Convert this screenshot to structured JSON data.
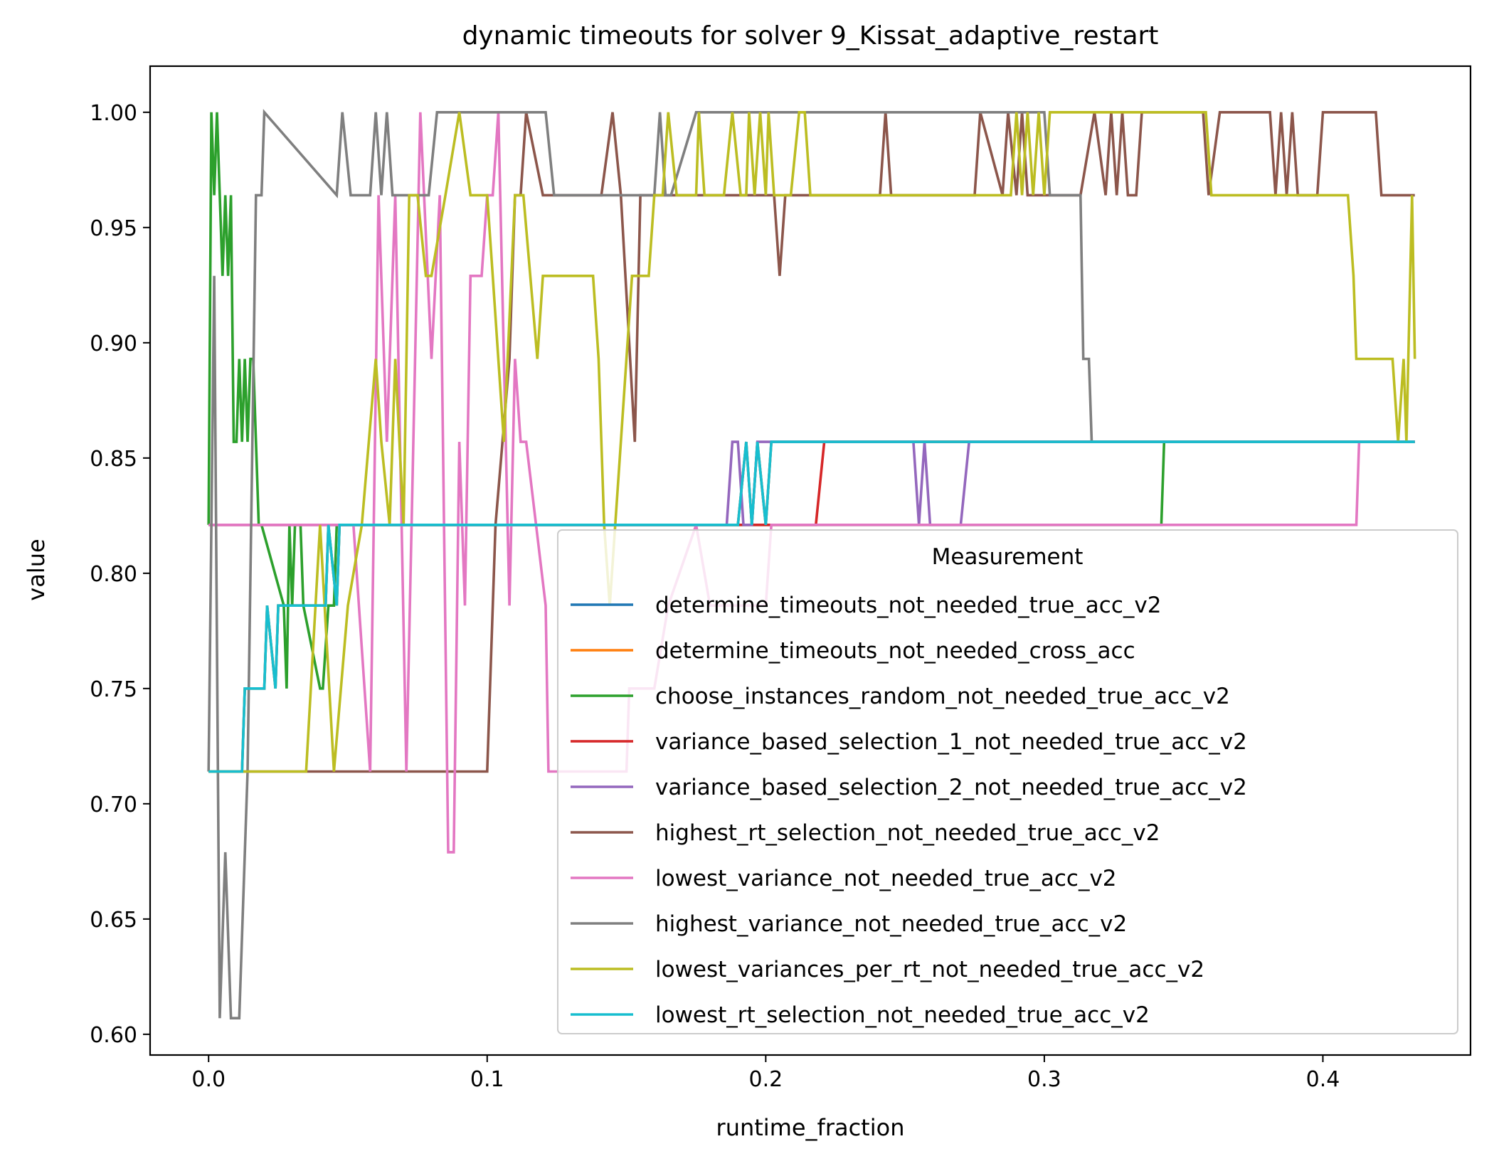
{
  "chart_data": {
    "type": "line",
    "title": "dynamic timeouts for solver 9_Kissat_adaptive_restart",
    "xlabel": "runtime_fraction",
    "ylabel": "value",
    "xlim": [
      -0.021,
      0.453
    ],
    "ylim": [
      0.591,
      1.02
    ],
    "xticks": [
      0.0,
      0.1,
      0.2,
      0.3,
      0.4
    ],
    "xtick_labels": [
      "0.0",
      "0.1",
      "0.2",
      "0.3",
      "0.4"
    ],
    "yticks": [
      0.6,
      0.65,
      0.7,
      0.75,
      0.8,
      0.85,
      0.9,
      0.95,
      1.0
    ],
    "ytick_labels": [
      "0.60",
      "0.65",
      "0.70",
      "0.75",
      "0.80",
      "0.85",
      "0.90",
      "0.95",
      "1.00"
    ],
    "grid": false,
    "legend": {
      "title": "Measurement",
      "placement": "lower-right"
    },
    "series": [
      {
        "name": "determine_timeouts_not_needed_true_acc_v2",
        "color": "#1f77b4",
        "x": [
          0.0,
          0.012,
          0.013,
          0.02,
          0.021,
          0.024,
          0.025,
          0.042,
          0.043,
          0.046,
          0.047,
          0.19,
          0.193,
          0.195,
          0.197,
          0.2,
          0.202,
          0.433
        ],
        "y": [
          0.714,
          0.714,
          0.75,
          0.75,
          0.786,
          0.75,
          0.786,
          0.786,
          0.821,
          0.786,
          0.821,
          0.821,
          0.857,
          0.821,
          0.857,
          0.821,
          0.857,
          0.857
        ]
      },
      {
        "name": "determine_timeouts_not_needed_cross_acc",
        "color": "#ff7f0e",
        "x": [
          0.0,
          0.012,
          0.013,
          0.02,
          0.021,
          0.024,
          0.025,
          0.042,
          0.043,
          0.046,
          0.047,
          0.19,
          0.193,
          0.195,
          0.197,
          0.2,
          0.202,
          0.433
        ],
        "y": [
          0.714,
          0.714,
          0.75,
          0.75,
          0.786,
          0.75,
          0.786,
          0.786,
          0.821,
          0.786,
          0.821,
          0.821,
          0.857,
          0.821,
          0.857,
          0.821,
          0.857,
          0.857
        ]
      },
      {
        "name": "choose_instances_random_not_needed_true_acc_v2",
        "color": "#2ca02c",
        "x": [
          0.0,
          0.001,
          0.002,
          0.003,
          0.004,
          0.005,
          0.006,
          0.007,
          0.008,
          0.009,
          0.01,
          0.011,
          0.012,
          0.013,
          0.014,
          0.015,
          0.016,
          0.018,
          0.019,
          0.027,
          0.028,
          0.029,
          0.03,
          0.031,
          0.033,
          0.034,
          0.04,
          0.041,
          0.043,
          0.045,
          0.046,
          0.047,
          0.048,
          0.342,
          0.343,
          0.433
        ],
        "y": [
          0.821,
          1.0,
          0.964,
          1.0,
          0.964,
          0.929,
          0.964,
          0.929,
          0.964,
          0.857,
          0.857,
          0.893,
          0.857,
          0.893,
          0.857,
          0.893,
          0.893,
          0.821,
          0.821,
          0.786,
          0.75,
          0.821,
          0.786,
          0.821,
          0.821,
          0.786,
          0.75,
          0.75,
          0.786,
          0.786,
          0.821,
          0.821,
          0.821,
          0.821,
          0.857,
          0.857
        ]
      },
      {
        "name": "variance_based_selection_1_not_needed_true_acc_v2",
        "color": "#d62728",
        "x": [
          0.0,
          0.218,
          0.221,
          0.433
        ],
        "y": [
          0.821,
          0.821,
          0.857,
          0.857
        ]
      },
      {
        "name": "variance_based_selection_2_not_needed_true_acc_v2",
        "color": "#9467bd",
        "x": [
          0.0,
          0.186,
          0.188,
          0.19,
          0.192,
          0.195,
          0.197,
          0.198,
          0.253,
          0.255,
          0.257,
          0.259,
          0.261,
          0.27,
          0.273,
          0.433
        ],
        "y": [
          0.821,
          0.821,
          0.857,
          0.857,
          0.821,
          0.821,
          0.857,
          0.857,
          0.857,
          0.821,
          0.857,
          0.821,
          0.821,
          0.821,
          0.857,
          0.857
        ]
      },
      {
        "name": "highest_rt_selection_not_needed_true_acc_v2",
        "color": "#8c564b",
        "x": [
          0.0,
          0.1,
          0.103,
          0.108,
          0.11,
          0.112,
          0.114,
          0.12,
          0.141,
          0.145,
          0.148,
          0.153,
          0.155,
          0.157,
          0.165,
          0.203,
          0.205,
          0.207,
          0.215,
          0.241,
          0.243,
          0.245,
          0.275,
          0.277,
          0.285,
          0.287,
          0.29,
          0.292,
          0.294,
          0.296,
          0.313,
          0.318,
          0.322,
          0.324,
          0.326,
          0.328,
          0.33,
          0.333,
          0.335,
          0.357,
          0.359,
          0.363,
          0.381,
          0.383,
          0.385,
          0.387,
          0.389,
          0.391,
          0.398,
          0.4,
          0.419,
          0.421,
          0.433
        ],
        "y": [
          0.714,
          0.714,
          0.821,
          0.893,
          0.964,
          0.964,
          1.0,
          0.964,
          0.964,
          1.0,
          0.964,
          0.857,
          0.964,
          0.964,
          0.964,
          0.964,
          0.929,
          0.964,
          0.964,
          0.964,
          1.0,
          0.964,
          0.964,
          1.0,
          0.964,
          1.0,
          0.964,
          1.0,
          0.964,
          0.964,
          0.964,
          1.0,
          0.964,
          1.0,
          0.964,
          1.0,
          0.964,
          0.964,
          1.0,
          1.0,
          0.964,
          1.0,
          1.0,
          0.964,
          1.0,
          0.964,
          1.0,
          0.964,
          0.964,
          1.0,
          1.0,
          0.964,
          0.964
        ]
      },
      {
        "name": "lowest_variance_not_needed_true_acc_v2",
        "color": "#e377c2",
        "x": [
          0.0,
          0.04,
          0.052,
          0.058,
          0.061,
          0.064,
          0.067,
          0.071,
          0.076,
          0.08,
          0.083,
          0.086,
          0.088,
          0.09,
          0.092,
          0.094,
          0.098,
          0.1,
          0.102,
          0.104,
          0.106,
          0.108,
          0.11,
          0.112,
          0.114,
          0.121,
          0.122,
          0.124,
          0.15,
          0.151,
          0.16,
          0.165,
          0.175,
          0.18,
          0.2,
          0.202,
          0.412,
          0.413,
          0.433
        ],
        "y": [
          0.821,
          0.821,
          0.821,
          0.714,
          0.964,
          0.857,
          0.964,
          0.714,
          1.0,
          0.893,
          0.964,
          0.679,
          0.679,
          0.857,
          0.786,
          0.929,
          0.929,
          0.964,
          0.964,
          1.0,
          0.893,
          0.786,
          0.893,
          0.857,
          0.857,
          0.786,
          0.714,
          0.714,
          0.714,
          0.75,
          0.75,
          0.786,
          0.821,
          0.786,
          0.786,
          0.821,
          0.821,
          0.857,
          0.857
        ]
      },
      {
        "name": "highest_variance_not_needed_true_acc_v2",
        "color": "#7f7f7f",
        "x": [
          0.0,
          0.002,
          0.004,
          0.006,
          0.008,
          0.011,
          0.014,
          0.017,
          0.019,
          0.02,
          0.046,
          0.048,
          0.051,
          0.058,
          0.06,
          0.062,
          0.064,
          0.066,
          0.079,
          0.082,
          0.121,
          0.124,
          0.16,
          0.162,
          0.164,
          0.166,
          0.175,
          0.18,
          0.3,
          0.302,
          0.313,
          0.314,
          0.316,
          0.317,
          0.433
        ],
        "y": [
          0.714,
          0.929,
          0.607,
          0.679,
          0.607,
          0.607,
          0.714,
          0.964,
          0.964,
          1.0,
          0.964,
          1.0,
          0.964,
          0.964,
          1.0,
          0.964,
          1.0,
          0.964,
          0.964,
          1.0,
          1.0,
          0.964,
          0.964,
          1.0,
          0.964,
          0.964,
          1.0,
          1.0,
          1.0,
          0.964,
          0.964,
          0.893,
          0.893,
          0.857,
          0.857
        ]
      },
      {
        "name": "lowest_variances_per_rt_not_needed_true_acc_v2",
        "color": "#bcbd22",
        "x": [
          0.0,
          0.035,
          0.04,
          0.045,
          0.05,
          0.055,
          0.06,
          0.062,
          0.065,
          0.067,
          0.07,
          0.072,
          0.075,
          0.078,
          0.08,
          0.085,
          0.09,
          0.094,
          0.1,
          0.102,
          0.106,
          0.11,
          0.113,
          0.118,
          0.12,
          0.125,
          0.13,
          0.138,
          0.14,
          0.142,
          0.144,
          0.148,
          0.152,
          0.158,
          0.16,
          0.163,
          0.165,
          0.168,
          0.171,
          0.175,
          0.176,
          0.178,
          0.185,
          0.188,
          0.191,
          0.193,
          0.194,
          0.196,
          0.198,
          0.2,
          0.201,
          0.203,
          0.209,
          0.212,
          0.214,
          0.216,
          0.22,
          0.223,
          0.288,
          0.29,
          0.292,
          0.294,
          0.296,
          0.298,
          0.3,
          0.302,
          0.358,
          0.36,
          0.392,
          0.397,
          0.409,
          0.411,
          0.412,
          0.425,
          0.427,
          0.429,
          0.43,
          0.432,
          0.433
        ],
        "y": [
          0.714,
          0.714,
          0.821,
          0.714,
          0.786,
          0.821,
          0.893,
          0.857,
          0.821,
          0.893,
          0.821,
          0.964,
          0.964,
          0.929,
          0.929,
          0.964,
          1.0,
          0.964,
          0.964,
          0.929,
          0.857,
          0.964,
          0.964,
          0.893,
          0.929,
          0.929,
          0.929,
          0.929,
          0.893,
          0.821,
          0.786,
          0.857,
          0.929,
          0.929,
          0.964,
          0.964,
          1.0,
          0.964,
          0.964,
          0.964,
          1.0,
          0.964,
          0.964,
          1.0,
          0.964,
          0.964,
          1.0,
          0.964,
          1.0,
          0.964,
          1.0,
          0.964,
          0.964,
          1.0,
          1.0,
          0.964,
          0.964,
          0.964,
          0.964,
          1.0,
          0.964,
          1.0,
          0.964,
          1.0,
          0.964,
          1.0,
          1.0,
          0.964,
          0.964,
          0.964,
          0.964,
          0.929,
          0.893,
          0.893,
          0.857,
          0.893,
          0.857,
          0.964,
          0.893
        ]
      },
      {
        "name": "lowest_rt_selection_not_needed_true_acc_v2",
        "color": "#17becf",
        "x": [
          0.0,
          0.012,
          0.013,
          0.02,
          0.021,
          0.024,
          0.025,
          0.042,
          0.043,
          0.046,
          0.047,
          0.19,
          0.193,
          0.195,
          0.197,
          0.2,
          0.202,
          0.433
        ],
        "y": [
          0.714,
          0.714,
          0.75,
          0.75,
          0.786,
          0.75,
          0.786,
          0.786,
          0.821,
          0.786,
          0.821,
          0.821,
          0.857,
          0.821,
          0.857,
          0.821,
          0.857,
          0.857
        ]
      }
    ]
  }
}
